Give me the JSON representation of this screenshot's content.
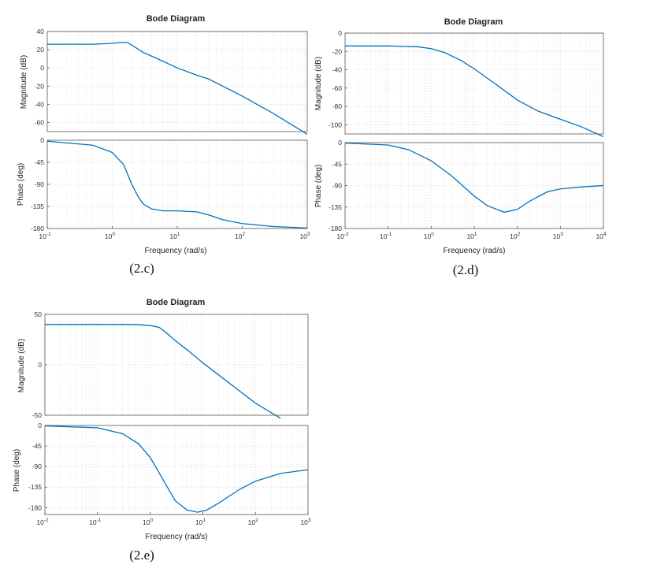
{
  "chart_data": [
    {
      "type": "line",
      "title": "Bode Diagram",
      "caption": "(2.c)",
      "xlabel": "Frequency  (rad/s)",
      "xscale": "log",
      "xlim": [
        0.1,
        1000
      ],
      "x_tick_exponents": [
        "-1",
        "0",
        "1",
        "2",
        "3"
      ],
      "magnitude": {
        "ylabel": "Magnitude (dB)",
        "ylim": [
          -70,
          40
        ],
        "yticks": [
          40,
          20,
          0,
          -20,
          -40,
          -60
        ],
        "x": [
          0.1,
          0.5,
          1,
          1.4,
          1.7,
          2,
          3,
          5,
          10,
          20,
          30,
          50,
          100,
          300,
          1000
        ],
        "y": [
          26,
          26,
          27,
          28,
          28,
          25,
          17,
          10,
          0,
          -8,
          -12,
          -20,
          -31,
          -50,
          -73
        ]
      },
      "phase": {
        "ylabel": "Phase (deg)",
        "ylim": [
          -180,
          0
        ],
        "yticks": [
          0,
          -45,
          -90,
          -135,
          -180
        ],
        "x": [
          0.1,
          0.5,
          1,
          1.5,
          2,
          2.5,
          3,
          4,
          6,
          10,
          20,
          30,
          50,
          100,
          300,
          1000
        ],
        "y": [
          -2,
          -10,
          -25,
          -50,
          -90,
          -115,
          -130,
          -140,
          -144,
          -144,
          -146,
          -152,
          -162,
          -170,
          -176,
          -179
        ]
      }
    },
    {
      "type": "line",
      "title": "Bode Diagram",
      "caption": "(2.d)",
      "xlabel": "Frequency  (rad/s)",
      "xscale": "log",
      "xlim": [
        0.01,
        10000
      ],
      "x_tick_exponents": [
        "-2",
        "-1",
        "0",
        "1",
        "2",
        "3",
        "4"
      ],
      "magnitude": {
        "ylabel": "Magnitude (dB)",
        "ylim": [
          -110,
          0
        ],
        "yticks": [
          0,
          -20,
          -40,
          -60,
          -80,
          -100
        ],
        "x": [
          0.01,
          0.1,
          0.5,
          1,
          2,
          5,
          10,
          30,
          100,
          300,
          1000,
          3000,
          10000
        ],
        "y": [
          -14,
          -14,
          -15,
          -17,
          -21,
          -30,
          -39,
          -55,
          -73,
          -85,
          -94,
          -102,
          -113
        ]
      },
      "phase": {
        "ylabel": "Phase (deg)",
        "ylim": [
          -180,
          0
        ],
        "yticks": [
          0,
          -45,
          -90,
          -135,
          -180
        ],
        "x": [
          0.01,
          0.1,
          0.3,
          1,
          3,
          10,
          20,
          50,
          100,
          200,
          500,
          1000,
          3000,
          10000
        ],
        "y": [
          -1,
          -5,
          -15,
          -38,
          -70,
          -112,
          -132,
          -146,
          -140,
          -122,
          -103,
          -97,
          -93,
          -90
        ]
      }
    },
    {
      "type": "line",
      "title": "Bode Diagram",
      "caption": "(2.e)",
      "xlabel": "Frequency  (rad/s)",
      "xscale": "log",
      "xlim": [
        0.01,
        1000
      ],
      "x_tick_exponents": [
        "-2",
        "-1",
        "0",
        "1",
        "2",
        "3"
      ],
      "magnitude": {
        "ylabel": "Magnitude (dB)",
        "ylim": [
          -50,
          50
        ],
        "yticks": [
          50,
          0,
          -50
        ],
        "x": [
          0.01,
          0.1,
          0.5,
          1,
          1.5,
          2,
          3,
          5,
          10,
          20,
          50,
          100,
          300
        ],
        "y": [
          40,
          40,
          40,
          39,
          37,
          32,
          24,
          15,
          2,
          -10,
          -26,
          -38,
          -53
        ]
      },
      "phase": {
        "ylabel": "Phase (deg)",
        "ylim": [
          -195,
          0
        ],
        "yticks": [
          0,
          -45,
          -90,
          -135,
          -180
        ],
        "x": [
          0.01,
          0.1,
          0.3,
          0.6,
          1,
          1.5,
          2,
          3,
          5,
          8,
          12,
          20,
          50,
          100,
          300,
          1000
        ],
        "y": [
          -1,
          -5,
          -18,
          -40,
          -70,
          -105,
          -130,
          -165,
          -185,
          -190,
          -185,
          -170,
          -140,
          -122,
          -105,
          -97
        ]
      }
    }
  ]
}
